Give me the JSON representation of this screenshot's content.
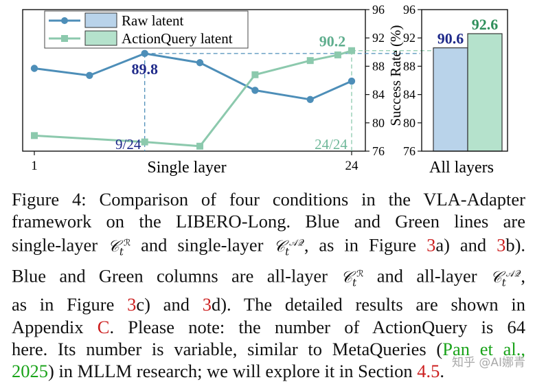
{
  "chart_data": [
    {
      "type": "line",
      "xlabel": "Single layer",
      "ylabel": "Success Rate (%)",
      "xlim": [
        1,
        24
      ],
      "ylim": [
        76,
        96
      ],
      "x_ticks": [
        "1",
        "24"
      ],
      "y_ticks": [
        76,
        80,
        84,
        88,
        92,
        96
      ],
      "legend": {
        "placement": "top-left",
        "entries": [
          "Raw latent",
          "ActionQuery latent"
        ]
      },
      "series": [
        {
          "name": "Raw latent",
          "color": "#4d8eb8",
          "x": [
            1,
            5,
            9,
            13,
            17,
            21,
            24
          ],
          "y": [
            87.7,
            86.7,
            89.8,
            88.5,
            84.6,
            83.3,
            85.9
          ]
        },
        {
          "name": "ActionQuery latent",
          "color": "#8cc9ad",
          "x": [
            1,
            9,
            13,
            17,
            21,
            23,
            24
          ],
          "y": [
            78.2,
            77.3,
            76.7,
            86.8,
            88.8,
            89.6,
            90.2
          ]
        }
      ],
      "annotations": [
        {
          "text": "89.8",
          "x": 9,
          "y": 89.8,
          "color": "#1f2a8a"
        },
        {
          "text": "90.2",
          "x": 24,
          "y": 90.2,
          "color": "#5fae8e"
        },
        {
          "text": "9/24",
          "x": 9,
          "color": "#1f2a8a"
        },
        {
          "text": "24/24",
          "x": 24,
          "color": "#6fb89a"
        }
      ]
    },
    {
      "type": "bar",
      "xlabel": "All layers",
      "ylim": [
        76,
        96
      ],
      "y_ticks": [
        76,
        80,
        84,
        88,
        92,
        96
      ],
      "categories": [
        "Raw latent",
        "ActionQuery latent"
      ],
      "values": [
        90.6,
        92.6
      ],
      "value_labels": [
        "90.6",
        "92.6"
      ],
      "colors": [
        "#b9d3ea",
        "#b5e2cc"
      ],
      "label_colors": [
        "#1f2a8a",
        "#2f8f5b"
      ]
    }
  ],
  "caption": {
    "figure_label": "Figure 4:",
    "line1_rest": "Comparison of four conditions in the VLA-Adapter",
    "line2": "framework on the LIBERO-Long.  Blue and Green lines are",
    "line3_a": "single-layer",
    "line3_b": "and single-layer",
    "line3_c": ", as in Figure",
    "ref_3": "3",
    "line3_d": "a) and",
    "line3_e": "b).",
    "line4_a": "Blue and Green columns are all-layer",
    "line4_b": "and all-layer",
    "line5_a": "as in Figure",
    "line5_b": "c) and",
    "line5_c": "d).  The detailed results are shown in",
    "line6_a": "Appendix",
    "ref_appendix": "C",
    "line6_b": ". Please note:  the number of ActionQuery is 64",
    "line7_a": "here. Its number is variable, similar to MetaQueries (",
    "cite_pan": "Pan et al.,",
    "cite_year": "2025",
    "line8_a": ") in MLLM research; we will explore it in Section",
    "ref_section": "4.5",
    "line8_b": ".",
    "math_C": "𝒞",
    "math_t": "t",
    "math_R": "ℛ",
    "math_AQ": "𝒜𝒬"
  },
  "watermark": "知乎 @AI娜青"
}
